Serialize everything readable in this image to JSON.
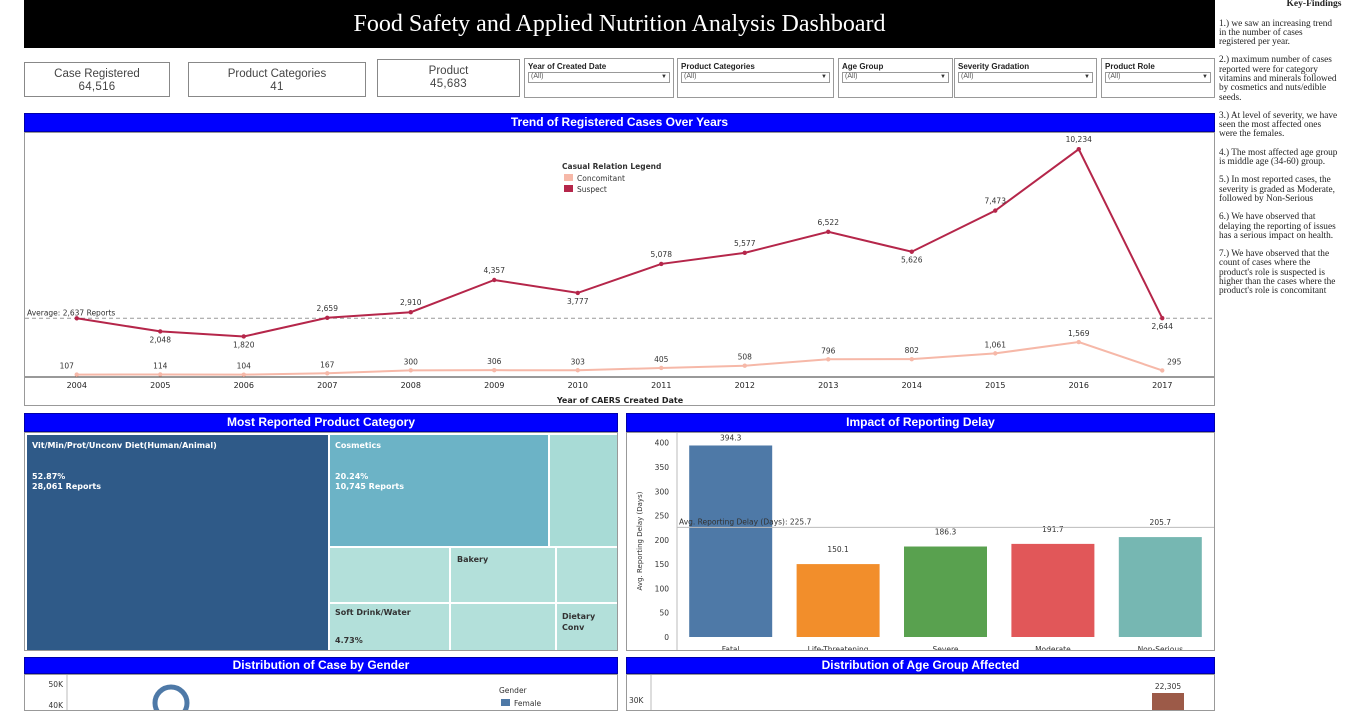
{
  "title": "Food Safety and Applied Nutrition Analysis Dashboard",
  "kpis": [
    {
      "label": "Case Registered",
      "value": "64,516"
    },
    {
      "label": "Product Categories",
      "value": "41"
    },
    {
      "label": "Product",
      "value": "45,683"
    }
  ],
  "filters": [
    {
      "label": "Year of Created Date",
      "value": "(All)"
    },
    {
      "label": "Product Categories",
      "value": "(All)"
    },
    {
      "label": "Age Group",
      "value": "(All)"
    },
    {
      "label": "Severity Gradation",
      "value": "(All)"
    },
    {
      "label": "Product Role",
      "value": "(All)"
    }
  ],
  "key_findings": {
    "heading": "Key-Findings",
    "items": [
      "1.) we saw an increasing trend in the number of cases registered per year.",
      "2.) maximum number of cases reported were for category vitamins and minerals followed by cosmetics and nuts/edible seeds.",
      "3.) At level of severity, we have seen the most affected ones were the females.",
      "4.) The most affected age group is middle age (34-60) group.",
      "5.) In most reported cases, the severity is graded as Moderate, followed by Non-Serious",
      "6.) We have observed that delaying the reporting of issues has a serious impact on health.",
      "7.) We have observed that the count of cases where the product's role is suspected is higher than the cases where the product's role is concomitant"
    ]
  },
  "panels": {
    "trend": "Trend of Registered Cases Over Years",
    "category": "Most Reported Product Category",
    "delay": "Impact of Reporting Delay",
    "gender": "Distribution of Case by Gender",
    "age": "Distribution of Age Group Affected"
  },
  "colors": {
    "suspect": "#b5264a",
    "concomitant": "#f6b8a8",
    "header_blue": "#0000ff"
  },
  "chart_data": [
    {
      "type": "line",
      "title": "Trend of Registered Cases Over Years",
      "xlabel": "Year of CAERS Created Date",
      "legend_title": "Casual Relation Legend",
      "x": [
        "2004",
        "2005",
        "2006",
        "2007",
        "2008",
        "2009",
        "2010",
        "2011",
        "2012",
        "2013",
        "2014",
        "2015",
        "2016",
        "2017"
      ],
      "series": [
        {
          "name": "Suspect",
          "values": [
            2637,
            2048,
            1820,
            2659,
            2910,
            4357,
            3777,
            5078,
            5577,
            6522,
            5626,
            7473,
            10234,
            2644
          ],
          "labels": [
            "",
            "2,048",
            "1,820",
            "2,659",
            "2,910",
            "4,357",
            "3,777",
            "5,078",
            "5,577",
            "6,522",
            "5,626",
            "7,473",
            "10,234",
            "2,644"
          ]
        },
        {
          "name": "Concomitant",
          "values": [
            107,
            114,
            104,
            167,
            300,
            306,
            303,
            405,
            508,
            796,
            802,
            1061,
            1569,
            295
          ],
          "labels": [
            "107",
            "114",
            "104",
            "167",
            "300",
            "306",
            "303",
            "405",
            "508",
            "796",
            "802",
            "1,061",
            "1,569",
            "295"
          ]
        }
      ],
      "reference_line": {
        "label": "Average: 2,637 Reports",
        "value": 2637
      },
      "ylim": [
        0,
        10600
      ]
    },
    {
      "type": "treemap",
      "title": "Most Reported Product Category",
      "items": [
        {
          "name": "Vit/Min/Prot/Unconv Diet(Human/Animal)",
          "percent": "52.87%",
          "reports": "28,061 Reports"
        },
        {
          "name": "Cosmetics",
          "percent": "20.24%",
          "reports": "10,745 Reports"
        },
        {
          "name": "Bakery",
          "percent": "",
          "reports": ""
        },
        {
          "name": "Soft Drink/Water",
          "percent": "4.73%",
          "reports": ""
        },
        {
          "name": "Dietary Conv",
          "percent": "",
          "reports": ""
        }
      ]
    },
    {
      "type": "bar",
      "title": "Impact of Reporting Delay",
      "categories": [
        "Fatal",
        "Life-Threatening",
        "Severe",
        "Moderate",
        "Non-Serious"
      ],
      "values": [
        394.3,
        150.1,
        186.3,
        191.7,
        205.7
      ],
      "value_labels": [
        "394.3",
        "150.1",
        "186.3",
        "191.7",
        "205.7"
      ],
      "colors": [
        "#4e79a7",
        "#f28e2b",
        "#59a14f",
        "#e15759",
        "#76b7b2"
      ],
      "ylabel": "Avg. Reporting Delay (Days)",
      "reference_line": {
        "label": "Avg. Reporting Delay (Days): 225.7",
        "value": 225.7
      },
      "yticks": [
        0,
        50,
        100,
        150,
        200,
        250,
        300,
        350,
        400
      ],
      "ylim": [
        0,
        420
      ]
    },
    {
      "type": "bar",
      "title": "Distribution of Case by Gender",
      "yticks": [
        "50K",
        "40K"
      ],
      "legend_title": "Gender",
      "legend": [
        "Female"
      ]
    },
    {
      "type": "bar",
      "title": "Distribution of Age Group Affected",
      "yticks": [
        "30K"
      ],
      "value_labels": [
        "22,305"
      ]
    }
  ]
}
